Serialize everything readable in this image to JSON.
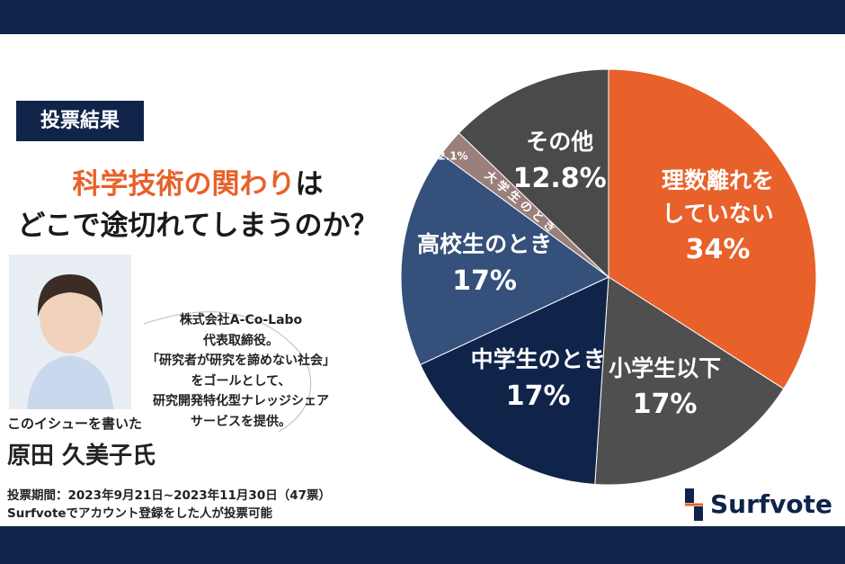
{
  "header": {
    "badge": "投票結果",
    "title_highlight": "科学技術の関わり",
    "title_rest": "は",
    "title_line2": "どこで途切れてしまうのか？"
  },
  "author": {
    "bio": [
      "株式会社A-Co-Labo",
      "代表取締役。",
      "「研究者が研究を諦めない社会」",
      "をゴールとして、",
      "研究開発特化型ナレッジシェア",
      "サービスを提供。"
    ],
    "intro": "このイシューを書いた",
    "name": "原田 久美子氏"
  },
  "footer": {
    "period": "投票期間：2023年9月21日~2023年11月30日（47票）",
    "note": "Surfvoteでアカウント登録をした人が投票可能"
  },
  "logo": "Surfvote",
  "chart_data": {
    "type": "pie",
    "categories": [
      "理数離れをしていない",
      "小学生以下",
      "中学生のとき",
      "高校生のとき",
      "大学生のとき",
      "その他"
    ],
    "values": [
      34,
      17,
      17,
      17,
      2.1,
      12.8
    ],
    "value_labels": [
      "34%",
      "17%",
      "17%",
      "17%",
      "2.1%",
      "12.8%"
    ],
    "colors": [
      "#e8612a",
      "#4f4f4f",
      "#10244a",
      "#34507b",
      "#9b7f7b",
      "#4a4a4a"
    ]
  }
}
